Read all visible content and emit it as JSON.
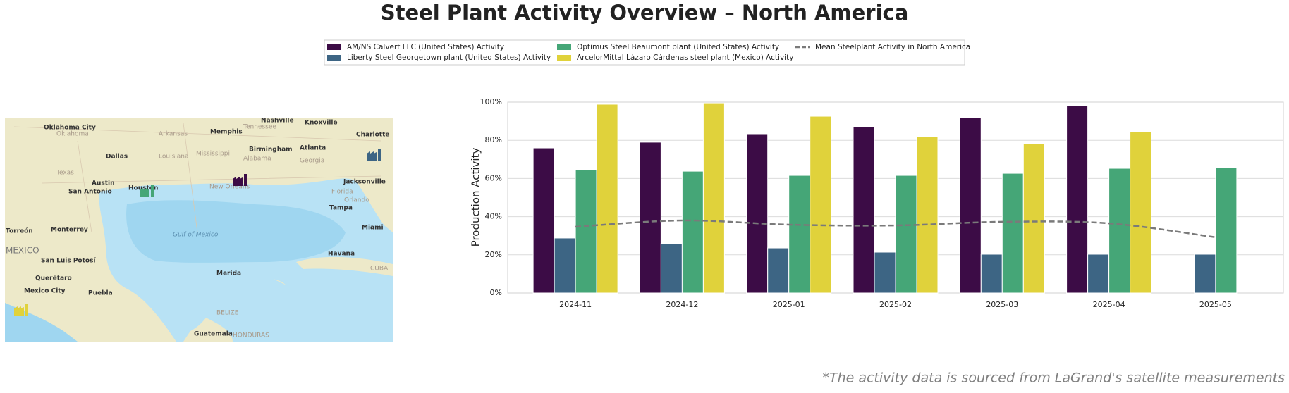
{
  "chart_data": {
    "type": "bar",
    "title": "Steel Plant Activity Overview – North America",
    "ylabel": "Production Activity",
    "footnote": "*The activity data is sourced from LaGrand's satellite measurements",
    "categories": [
      "2024-11",
      "2024-12",
      "2025-01",
      "2025-02",
      "2025-03",
      "2025-04",
      "2025-05"
    ],
    "series": [
      {
        "name": "AM/NS Calvert LLC (United States) Activity",
        "color": "#3c0c46",
        "type": "bar",
        "values": [
          76,
          79,
          83.4,
          87,
          92,
          98,
          null
        ]
      },
      {
        "name": "Liberty Steel Georgetown plant (United States) Activity",
        "color": "#3d6584",
        "type": "bar",
        "values": [
          28.8,
          26,
          23.6,
          21.4,
          20.3,
          20.3,
          20.3
        ]
      },
      {
        "name": "Optimus Steel Beaumont plant (United States) Activity",
        "color": "#45a677",
        "type": "bar",
        "values": [
          64.6,
          63.8,
          61.6,
          61.6,
          62.7,
          65.3,
          65.7
        ]
      },
      {
        "name": "ArcelorMittal Lázaro Cárdenas steel plant (Mexico) Activity",
        "color": "#e0d23b",
        "type": "bar",
        "values": [
          98.9,
          99.6,
          92.6,
          81.9,
          78.2,
          84.5,
          null
        ]
      },
      {
        "name": "Mean Steelplant Activity in North America",
        "color": "#7a7a7a",
        "type": "line",
        "line_style": "dashed",
        "values": [
          34.7,
          38,
          35.8,
          35.4,
          37.3,
          36.5,
          29.2
        ]
      }
    ],
    "ylim": [
      0,
      100
    ],
    "yticks": [
      {
        "value": 0,
        "label": "0%"
      },
      {
        "value": 20,
        "label": "20%"
      },
      {
        "value": 40,
        "label": "40%"
      },
      {
        "value": 60,
        "label": "60%"
      },
      {
        "value": 80,
        "label": "80%"
      },
      {
        "value": 100,
        "label": "100%"
      }
    ],
    "grid": true,
    "legend": "top"
  },
  "map": {
    "labels": [
      "Oklahoma City",
      "Nashville",
      "Knoxville",
      "Memphis",
      "Birmingham",
      "Atlanta",
      "Charlotte",
      "Dallas",
      "Texas",
      "Austin",
      "San Antonio",
      "Houston",
      "New Orleans",
      "Jacksonville",
      "Orlando",
      "Tampa",
      "Miami",
      "Torreón",
      "Monterrey",
      "MEXICO",
      "San Luis Potosí",
      "Querétaro",
      "Mexico City",
      "Puebla",
      "Gulf of Mexico",
      "Havana",
      "Merida",
      "CUBA",
      "BELIZE",
      "Guatemala",
      "HONDURAS",
      "Louisiana",
      "Mississippi",
      "Alabama",
      "Georgia",
      "Florida",
      "Arkansas",
      "Oklahoma",
      "Tennessee"
    ]
  }
}
